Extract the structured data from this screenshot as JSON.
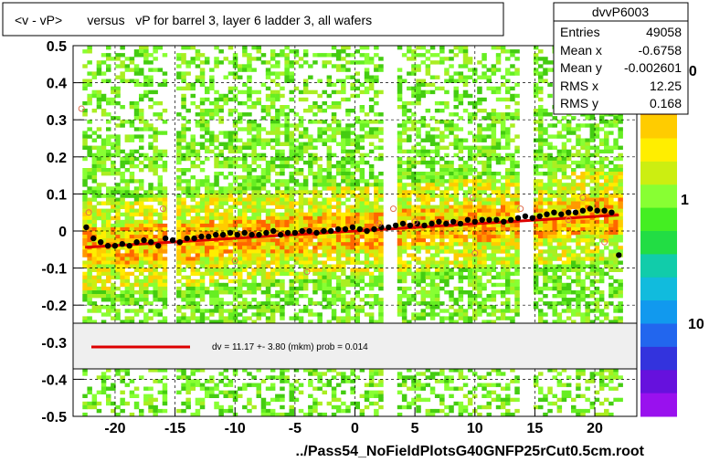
{
  "chart_data": {
    "type": "scatter",
    "title": "<v - vP>       versus   vP for barrel 3, layer 6 ladder 3, all wafers",
    "xlabel": "",
    "ylabel": "",
    "xlim": [
      -23.5,
      23.5
    ],
    "ylim": [
      -0.5,
      0.5
    ],
    "x_ticks": [
      "-20",
      "-15",
      "-10",
      "-5",
      "0",
      "5",
      "10",
      "15",
      "20"
    ],
    "y_ticks": [
      "0.5",
      "0.4",
      "0.3",
      "0.2",
      "0.1",
      "0",
      "-0.1",
      "-0.2",
      "-0.3",
      "-0.4",
      "-0.5"
    ],
    "grid": true,
    "background_type": "heatmap",
    "colorbar_labels": [
      "10",
      "1",
      "10"
    ],
    "stats_box": {
      "name": "dvvP6003",
      "rows": [
        {
          "label": "Entries",
          "value": "49058"
        },
        {
          "label": "Mean x",
          "value": "-0.6758"
        },
        {
          "label": "Mean y",
          "value": "-0.002601"
        },
        {
          "label": "RMS x",
          "value": "12.25"
        },
        {
          "label": "RMS y",
          "value": "0.168"
        }
      ]
    },
    "fit_legend": "dv =   11.17 +-  3.80 (mkm) prob = 0.014",
    "fit_line": {
      "intercept": 0.0,
      "slope": 0.00196,
      "x_range": [
        -22.5,
        22.0
      ]
    },
    "series": [
      {
        "marker": "black-filled",
        "x": [
          -22.4,
          -21.8,
          -21.2,
          -20.6,
          -20.0,
          -19.4,
          -18.8,
          -18.2,
          -17.6,
          -17.0,
          -16.4,
          -15.8,
          -15.2,
          -14.6,
          -14.0,
          -13.4,
          -12.8,
          -12.2,
          -11.6,
          -11.0,
          -10.4,
          -9.8,
          -9.2,
          -8.6,
          -8.0,
          -7.4,
          -6.8,
          -6.2,
          -5.6,
          -5.0,
          -4.4,
          -3.8,
          -3.2,
          -2.6,
          -2.0,
          -1.4,
          -0.8,
          -0.2,
          0.4,
          1.0,
          1.6,
          2.2,
          2.8,
          3.4,
          4.0,
          4.6,
          5.2,
          5.8,
          6.4,
          7.0,
          7.6,
          8.2,
          8.8,
          9.4,
          10.0,
          10.6,
          11.2,
          11.8,
          12.4,
          13.0,
          13.6,
          14.2,
          14.8,
          15.4,
          16.0,
          16.6,
          17.2,
          17.8,
          18.4,
          19.0,
          19.6,
          20.2,
          20.8,
          21.4,
          22.0
        ],
        "y": [
          0.01,
          -0.02,
          -0.03,
          -0.04,
          -0.04,
          -0.035,
          -0.04,
          -0.03,
          -0.025,
          -0.03,
          -0.04,
          -0.02,
          -0.025,
          -0.03,
          -0.02,
          -0.02,
          -0.015,
          -0.015,
          -0.01,
          -0.01,
          -0.005,
          -0.01,
          -0.005,
          -0.01,
          -0.01,
          -0.005,
          0.0,
          -0.01,
          -0.005,
          -0.005,
          0.0,
          0.0,
          -0.005,
          0.0,
          0.0,
          0.005,
          0.005,
          0.01,
          0.005,
          0.0,
          0.005,
          0.01,
          0.01,
          0.015,
          0.02,
          0.015,
          0.02,
          0.015,
          0.02,
          0.025,
          0.02,
          0.025,
          0.02,
          0.03,
          0.025,
          0.03,
          0.03,
          0.03,
          0.025,
          0.03,
          0.035,
          0.04,
          0.035,
          0.04,
          0.045,
          0.05,
          0.045,
          0.05,
          0.05,
          0.055,
          0.06,
          0.055,
          0.055,
          0.05,
          -0.065
        ]
      },
      {
        "marker": "open-orange",
        "x": [
          -22.8,
          -22.2,
          -16.0,
          -10.0,
          -4.0,
          2.0,
          3.2,
          5.0,
          9.8,
          10.0,
          13.8,
          17.8,
          19.0,
          20.8
        ],
        "y": [
          0.33,
          0.05,
          0.06,
          -0.08,
          -0.11,
          0.02,
          0.06,
          0.025,
          0.09,
          -0.06,
          0.06,
          0.03,
          0.09,
          -0.03
        ]
      }
    ]
  },
  "footer": "../Pass54_NoFieldPlotsG40GNFP25rCut0.5cm.root"
}
